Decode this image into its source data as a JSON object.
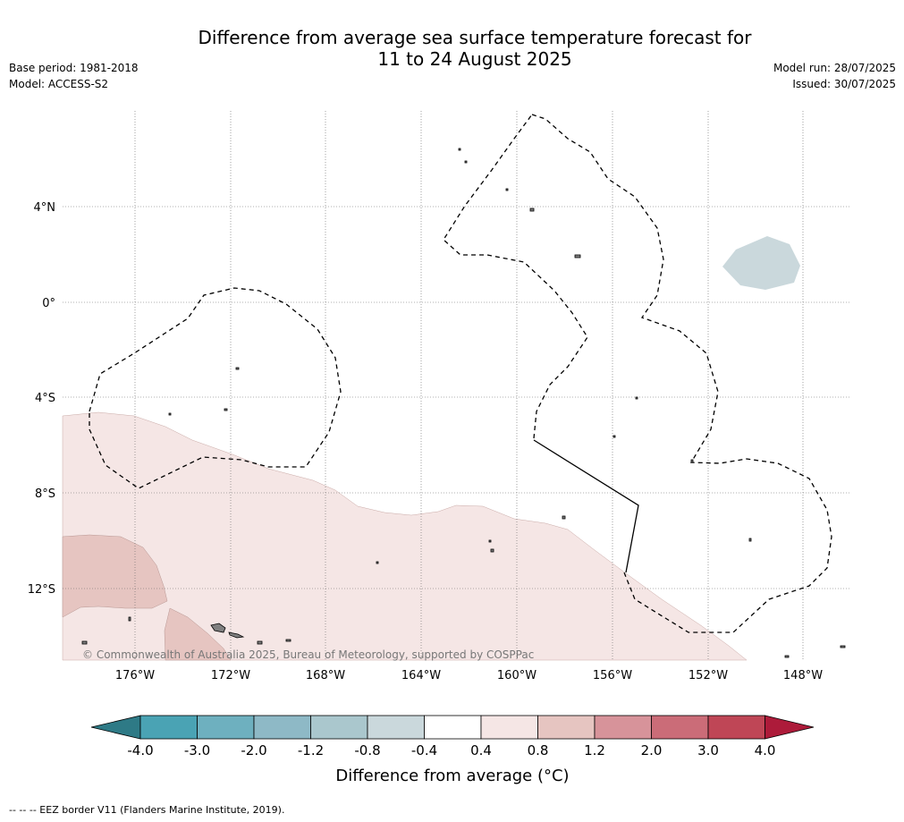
{
  "title": {
    "line1": "Difference from average sea surface temperature forecast for",
    "line2": "11 to 24 August 2025"
  },
  "meta": {
    "base_period": "Base period: 1981-2018",
    "model": "Model: ACCESS-S2",
    "model_run": "Model run: 28/07/2025",
    "issued": "Issued: 30/07/2025"
  },
  "map": {
    "copyright": "© Commonwealth of Australia 2025, Bureau of Meteorology, supported by COSPPac",
    "lat_labels": [
      "4°N",
      "0°",
      "4°S",
      "8°S",
      "12°S"
    ],
    "lon_labels": [
      "176°W",
      "172°W",
      "168°W",
      "164°W",
      "160°W",
      "156°W",
      "152°W",
      "148°W"
    ],
    "colors": {
      "ocean": "#ffffff",
      "class_0_4_0_8": "#f5e6e5",
      "class_0_8_1_2": "#e6c5c1",
      "class_neg0_8_neg0_4": "#cad8dc",
      "eez_line": "#000000",
      "land": "#808080"
    }
  },
  "colorbar": {
    "ticks": [
      "-4.0",
      "-3.0",
      "-2.0",
      "-1.2",
      "-0.8",
      "-0.4",
      "0.4",
      "0.8",
      "1.2",
      "2.0",
      "3.0",
      "4.0"
    ],
    "colors": [
      "#2e7a86",
      "#4aa3b4",
      "#6eb0bf",
      "#8eb9c6",
      "#aac7cd",
      "#cad8dc",
      "#ffffff",
      "#f5e6e5",
      "#e6c5c1",
      "#d7939a",
      "#cb6c78",
      "#bf4656",
      "#ad1b3a"
    ],
    "label": "Difference from average (°C)"
  },
  "footer": "--  --  -- EEZ border V11 (Flanders Marine Institute, 2019)."
}
